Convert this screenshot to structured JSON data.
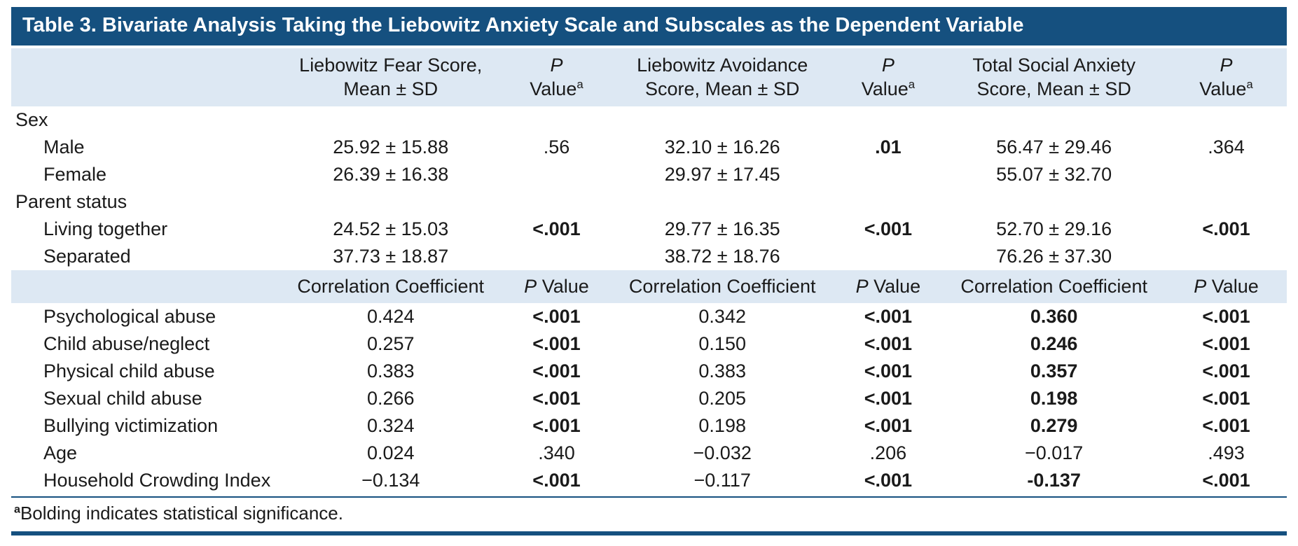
{
  "colors": {
    "navy": "#15507f",
    "header_bg": "#dde8f3"
  },
  "table": {
    "title": "Table 3. Bivariate Analysis Taking the Liebowitz Anxiety Scale and Subscales as the Dependent Variable",
    "header1": [
      {
        "line1": ""
      },
      {
        "line1": "Liebowitz Fear Score,",
        "line2": "Mean ± SD"
      },
      {
        "line1": "P",
        "line1_italic": true,
        "line2": "Value",
        "sup": "a"
      },
      {
        "line1": "Liebowitz Avoidance",
        "line2": "Score, Mean ± SD"
      },
      {
        "line1": "P",
        "line1_italic": true,
        "line2": "Value",
        "sup": "a"
      },
      {
        "line1": "Total Social Anxiety",
        "line2": "Score, Mean ± SD"
      },
      {
        "line1": "P",
        "line1_italic": true,
        "line2": "Value",
        "sup": "a"
      }
    ],
    "rows_top": [
      {
        "label": "Sex",
        "group": true
      },
      {
        "label": "Male",
        "indent": true,
        "cells": [
          "25.92 ± 15.88",
          ".56",
          "32.10 ± 16.26",
          {
            "v": ".01",
            "bold": true
          },
          "56.47 ± 29.46",
          ".364"
        ]
      },
      {
        "label": "Female",
        "indent": true,
        "cells": [
          "26.39 ± 16.38",
          "",
          "29.97 ± 17.45",
          "",
          "55.07 ± 32.70",
          ""
        ]
      },
      {
        "label": "Parent status",
        "group": true
      },
      {
        "label": "Living together",
        "indent": true,
        "cells": [
          "24.52 ± 15.03",
          {
            "v": "<.001",
            "bold": true
          },
          "29.77 ± 16.35",
          {
            "v": "<.001",
            "bold": true
          },
          "52.70 ± 29.16",
          {
            "v": "<.001",
            "bold": true
          }
        ]
      },
      {
        "label": "Separated",
        "indent": true,
        "cells": [
          "37.73 ± 18.87",
          "",
          "38.72 ± 18.76",
          "",
          "76.26 ± 37.30",
          ""
        ]
      }
    ],
    "header2": [
      {
        "text": ""
      },
      {
        "text": "Correlation Coefficient"
      },
      {
        "italic": "P",
        "text": " Value"
      },
      {
        "text": "Correlation Coefficient"
      },
      {
        "italic": "P",
        "text": " Value"
      },
      {
        "text": "Correlation Coefficient"
      },
      {
        "italic": "P",
        "text": " Value"
      }
    ],
    "rows_corr": [
      {
        "label": "Psychological abuse",
        "indent": true,
        "cells": [
          "0.424",
          {
            "v": "<.001",
            "bold": true
          },
          "0.342",
          {
            "v": "<.001",
            "bold": true
          },
          {
            "v": "0.360",
            "bold": true
          },
          {
            "v": "<.001",
            "bold": true
          }
        ]
      },
      {
        "label": "Child abuse/neglect",
        "indent": true,
        "cells": [
          "0.257",
          {
            "v": "<.001",
            "bold": true
          },
          "0.150",
          {
            "v": "<.001",
            "bold": true
          },
          {
            "v": "0.246",
            "bold": true
          },
          {
            "v": "<.001",
            "bold": true
          }
        ]
      },
      {
        "label": "Physical child abuse",
        "indent": true,
        "cells": [
          "0.383",
          {
            "v": "<.001",
            "bold": true
          },
          "0.383",
          {
            "v": "<.001",
            "bold": true
          },
          {
            "v": "0.357",
            "bold": true
          },
          {
            "v": "<.001",
            "bold": true
          }
        ]
      },
      {
        "label": "Sexual child abuse",
        "indent": true,
        "cells": [
          "0.266",
          {
            "v": "<.001",
            "bold": true
          },
          "0.205",
          {
            "v": "<.001",
            "bold": true
          },
          {
            "v": "0.198",
            "bold": true
          },
          {
            "v": "<.001",
            "bold": true
          }
        ]
      },
      {
        "label": "Bullying victimization",
        "indent": true,
        "cells": [
          "0.324",
          {
            "v": "<.001",
            "bold": true
          },
          "0.198",
          {
            "v": "<.001",
            "bold": true
          },
          {
            "v": "0.279",
            "bold": true
          },
          {
            "v": "<.001",
            "bold": true
          }
        ]
      },
      {
        "label": "Age",
        "indent": true,
        "cells": [
          "0.024",
          ".340",
          "−0.032",
          ".206",
          "−0.017",
          ".493"
        ]
      },
      {
        "label": "Household Crowding Index",
        "indent": true,
        "cells": [
          "−0.134",
          {
            "v": "<.001",
            "bold": true
          },
          "−0.117",
          {
            "v": "<.001",
            "bold": true
          },
          {
            "v": "-0.137",
            "bold": true
          },
          {
            "v": "<.001",
            "bold": true
          }
        ]
      }
    ],
    "footnote_sup": "a",
    "footnote_text": "Bolding indicates statistical significance."
  }
}
